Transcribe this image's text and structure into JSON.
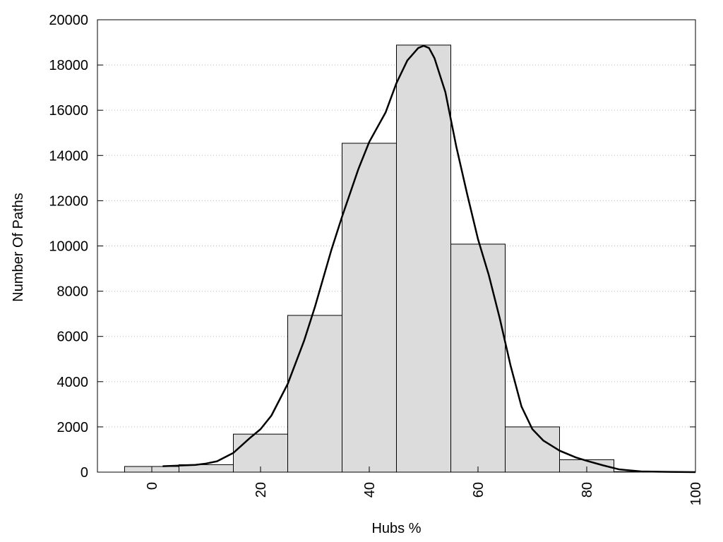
{
  "chart_data": {
    "type": "bar",
    "title": "",
    "xlabel": "Hubs %",
    "ylabel": "Number Of Paths",
    "xlim": [
      -10,
      100
    ],
    "ylim": [
      0,
      20000
    ],
    "xticks": [
      0,
      20,
      40,
      60,
      80,
      100
    ],
    "yticks": [
      0,
      2000,
      4000,
      6000,
      8000,
      10000,
      12000,
      14000,
      16000,
      18000,
      20000
    ],
    "grid": "horizontal dotted",
    "bar_width": 10,
    "bar_color": "#dcdcdc",
    "bars": {
      "x": [
        0,
        10,
        20,
        30,
        40,
        50,
        60,
        70,
        80,
        90
      ],
      "values": [
        250,
        330,
        1680,
        6930,
        14540,
        18880,
        10080,
        2000,
        550,
        20
      ]
    },
    "curve": {
      "type": "line",
      "color": "#000000",
      "x": [
        2,
        5,
        8,
        10,
        12,
        15,
        18,
        20,
        22,
        25,
        28,
        30,
        33,
        35,
        38,
        40,
        43,
        45,
        47,
        49,
        50,
        51,
        52,
        54,
        56,
        58,
        60,
        62,
        64,
        66,
        68,
        70,
        72,
        75,
        78,
        80,
        83,
        86,
        90,
        95,
        100
      ],
      "values": [
        260,
        290,
        320,
        380,
        480,
        850,
        1500,
        1900,
        2500,
        3900,
        5800,
        7300,
        9800,
        11300,
        13400,
        14600,
        15900,
        17200,
        18200,
        18750,
        18850,
        18750,
        18300,
        16800,
        14400,
        12300,
        10300,
        8700,
        6800,
        4700,
        2900,
        1900,
        1400,
        950,
        650,
        500,
        300,
        120,
        30,
        10,
        0
      ]
    }
  }
}
